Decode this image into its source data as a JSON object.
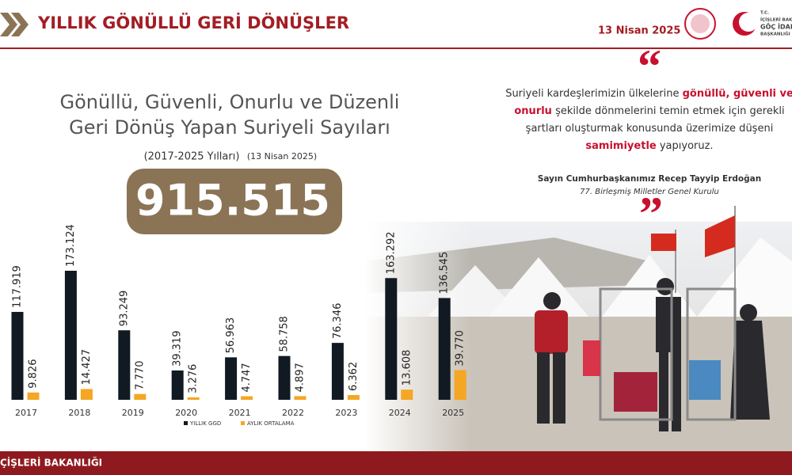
{
  "header": {
    "title": "YILLIK GÖNÜLLÜ GERİ DÖNÜŞLER",
    "date": "13 Nisan 2025",
    "logo_lines": [
      "T.C.",
      "İÇİŞLERİ BAKANLIĞI",
      "GÖÇ İDARESİ",
      "BAŞKANLIĞI"
    ]
  },
  "chart_data": {
    "type": "bar",
    "title": [
      "Gönüllü, Güvenli, Onurlu ve Düzenli",
      "Geri Dönüş Yapan Suriyeli Sayıları"
    ],
    "subtitle": "(2017-2025 Yılları)",
    "subtitle_date": "(13 Nisan 2025)",
    "total": "915.515",
    "categories": [
      "2017",
      "2018",
      "2019",
      "2020",
      "2021",
      "2022",
      "2023",
      "2024",
      "2025"
    ],
    "series": [
      {
        "name": "YILLIK GGD",
        "color": "#111a22",
        "values": [
          117919,
          173124,
          93249,
          39319,
          56963,
          58758,
          76346,
          163292,
          136545
        ],
        "value_labels": [
          "117.919",
          "173.124",
          "93.249",
          "39.319",
          "56.963",
          "58.758",
          "76.346",
          "163.292",
          "136.545"
        ]
      },
      {
        "name": "AYLIK ORTALAMA",
        "color": "#f5a623",
        "values": [
          9826,
          14427,
          7770,
          3276,
          4747,
          4897,
          6362,
          13608,
          39770
        ],
        "value_labels": [
          "9.826",
          "14.427",
          "7.770",
          "3.276",
          "4.747",
          "4.897",
          "6.362",
          "13.608",
          "39.770"
        ]
      }
    ]
  },
  "quote": {
    "open_mark": "“",
    "close_mark": "”",
    "lines": [
      [
        {
          "text": "Suriyeli kardeşlerimizin ülkelerine ",
          "color": "#333333"
        },
        {
          "text": "gönüllü, güvenli ve",
          "color": "#c8102e"
        }
      ],
      [
        {
          "text": "onurlu",
          "color": "#c8102e"
        },
        {
          "text": " şekilde dönmelerini temin etmek için gerekli",
          "color": "#333333"
        }
      ],
      [
        {
          "text": "şartları oluşturmak konusunda üzerimize düşeni",
          "color": "#333333"
        }
      ],
      [
        {
          "text": "samimiyetle",
          "color": "#c8102e"
        },
        {
          "text": " yapıyoruz.",
          "color": "#333333"
        }
      ]
    ],
    "speaker": "Sayın Cumhurbaşkanımız Recep Tayyip Erdoğan",
    "event": "77. Birleşmiş Milletler Genel Kurulu"
  },
  "footer": {
    "text": "ÇİŞLERİ BAKANLIĞI"
  }
}
